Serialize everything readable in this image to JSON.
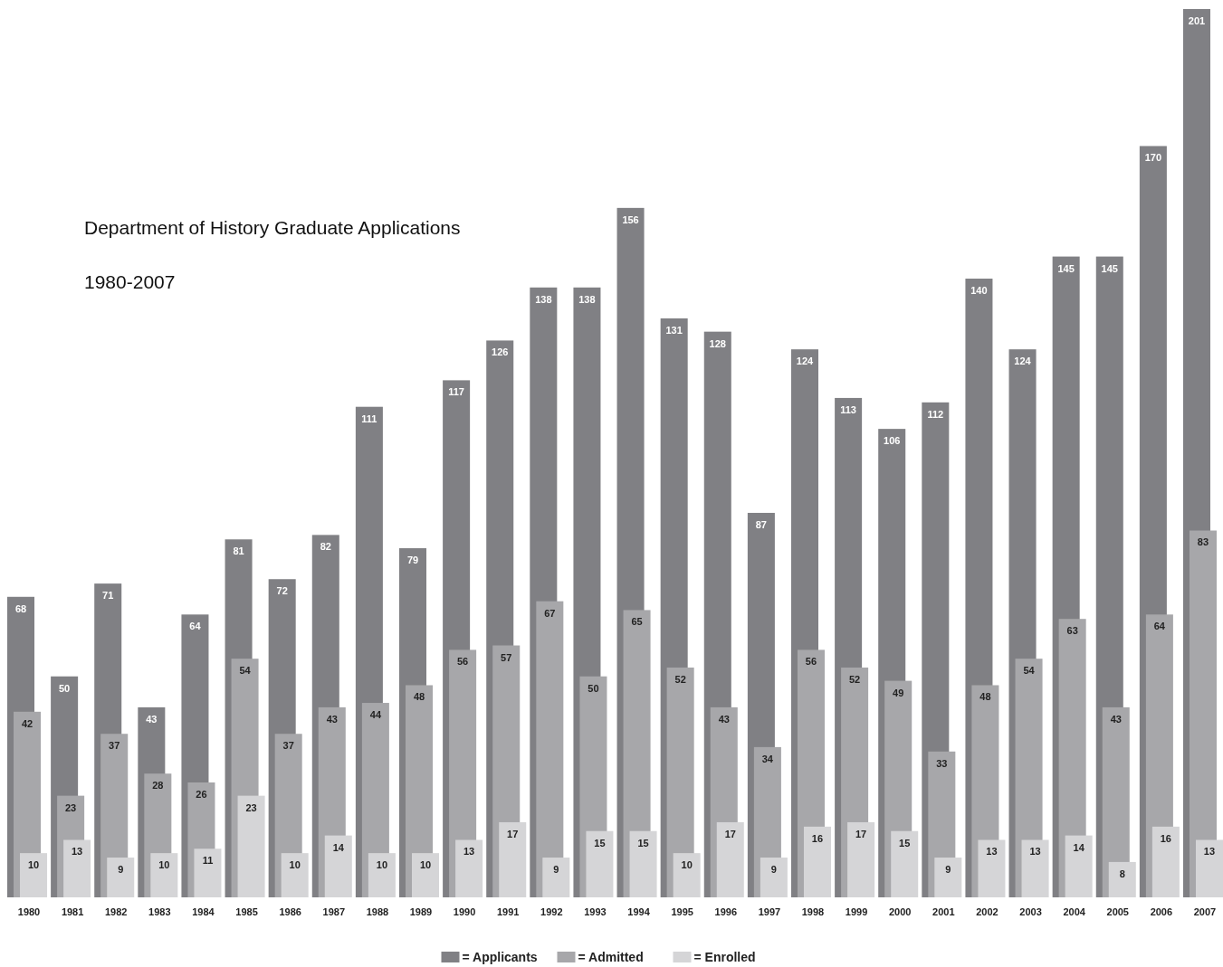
{
  "chart_data": {
    "type": "bar",
    "title": "Department of History Graduate Applications",
    "subtitle": "1980-2007",
    "categories": [
      "1980",
      "1981",
      "1982",
      "1983",
      "1984",
      "1985",
      "1986",
      "1987",
      "1988",
      "1989",
      "1990",
      "1991",
      "1992",
      "1993",
      "1994",
      "1995",
      "1996",
      "1997",
      "1998",
      "1999",
      "2000",
      "2001",
      "2002",
      "2003",
      "2004",
      "2005",
      "2006",
      "2007"
    ],
    "series": [
      {
        "name": "= Applicants",
        "color": "#808084",
        "values": [
          68,
          50,
          71,
          43,
          64,
          81,
          72,
          82,
          111,
          79,
          117,
          126,
          138,
          138,
          156,
          131,
          128,
          87,
          124,
          113,
          106,
          112,
          140,
          124,
          145,
          145,
          170,
          201
        ]
      },
      {
        "name": "= Admitted",
        "color": "#a7a7aa",
        "values": [
          42,
          23,
          37,
          28,
          26,
          54,
          37,
          43,
          44,
          48,
          56,
          57,
          67,
          50,
          65,
          52,
          43,
          34,
          56,
          52,
          49,
          33,
          48,
          54,
          63,
          43,
          64,
          83
        ]
      },
      {
        "name": "= Enrolled",
        "color": "#d5d5d7",
        "values": [
          10,
          13,
          9,
          10,
          11,
          23,
          10,
          14,
          10,
          10,
          13,
          17,
          9,
          15,
          15,
          10,
          17,
          9,
          16,
          17,
          15,
          9,
          13,
          13,
          14,
          8,
          16,
          13
        ]
      }
    ],
    "data_labels": true,
    "legend": "bottom",
    "tick_labels": "x"
  }
}
